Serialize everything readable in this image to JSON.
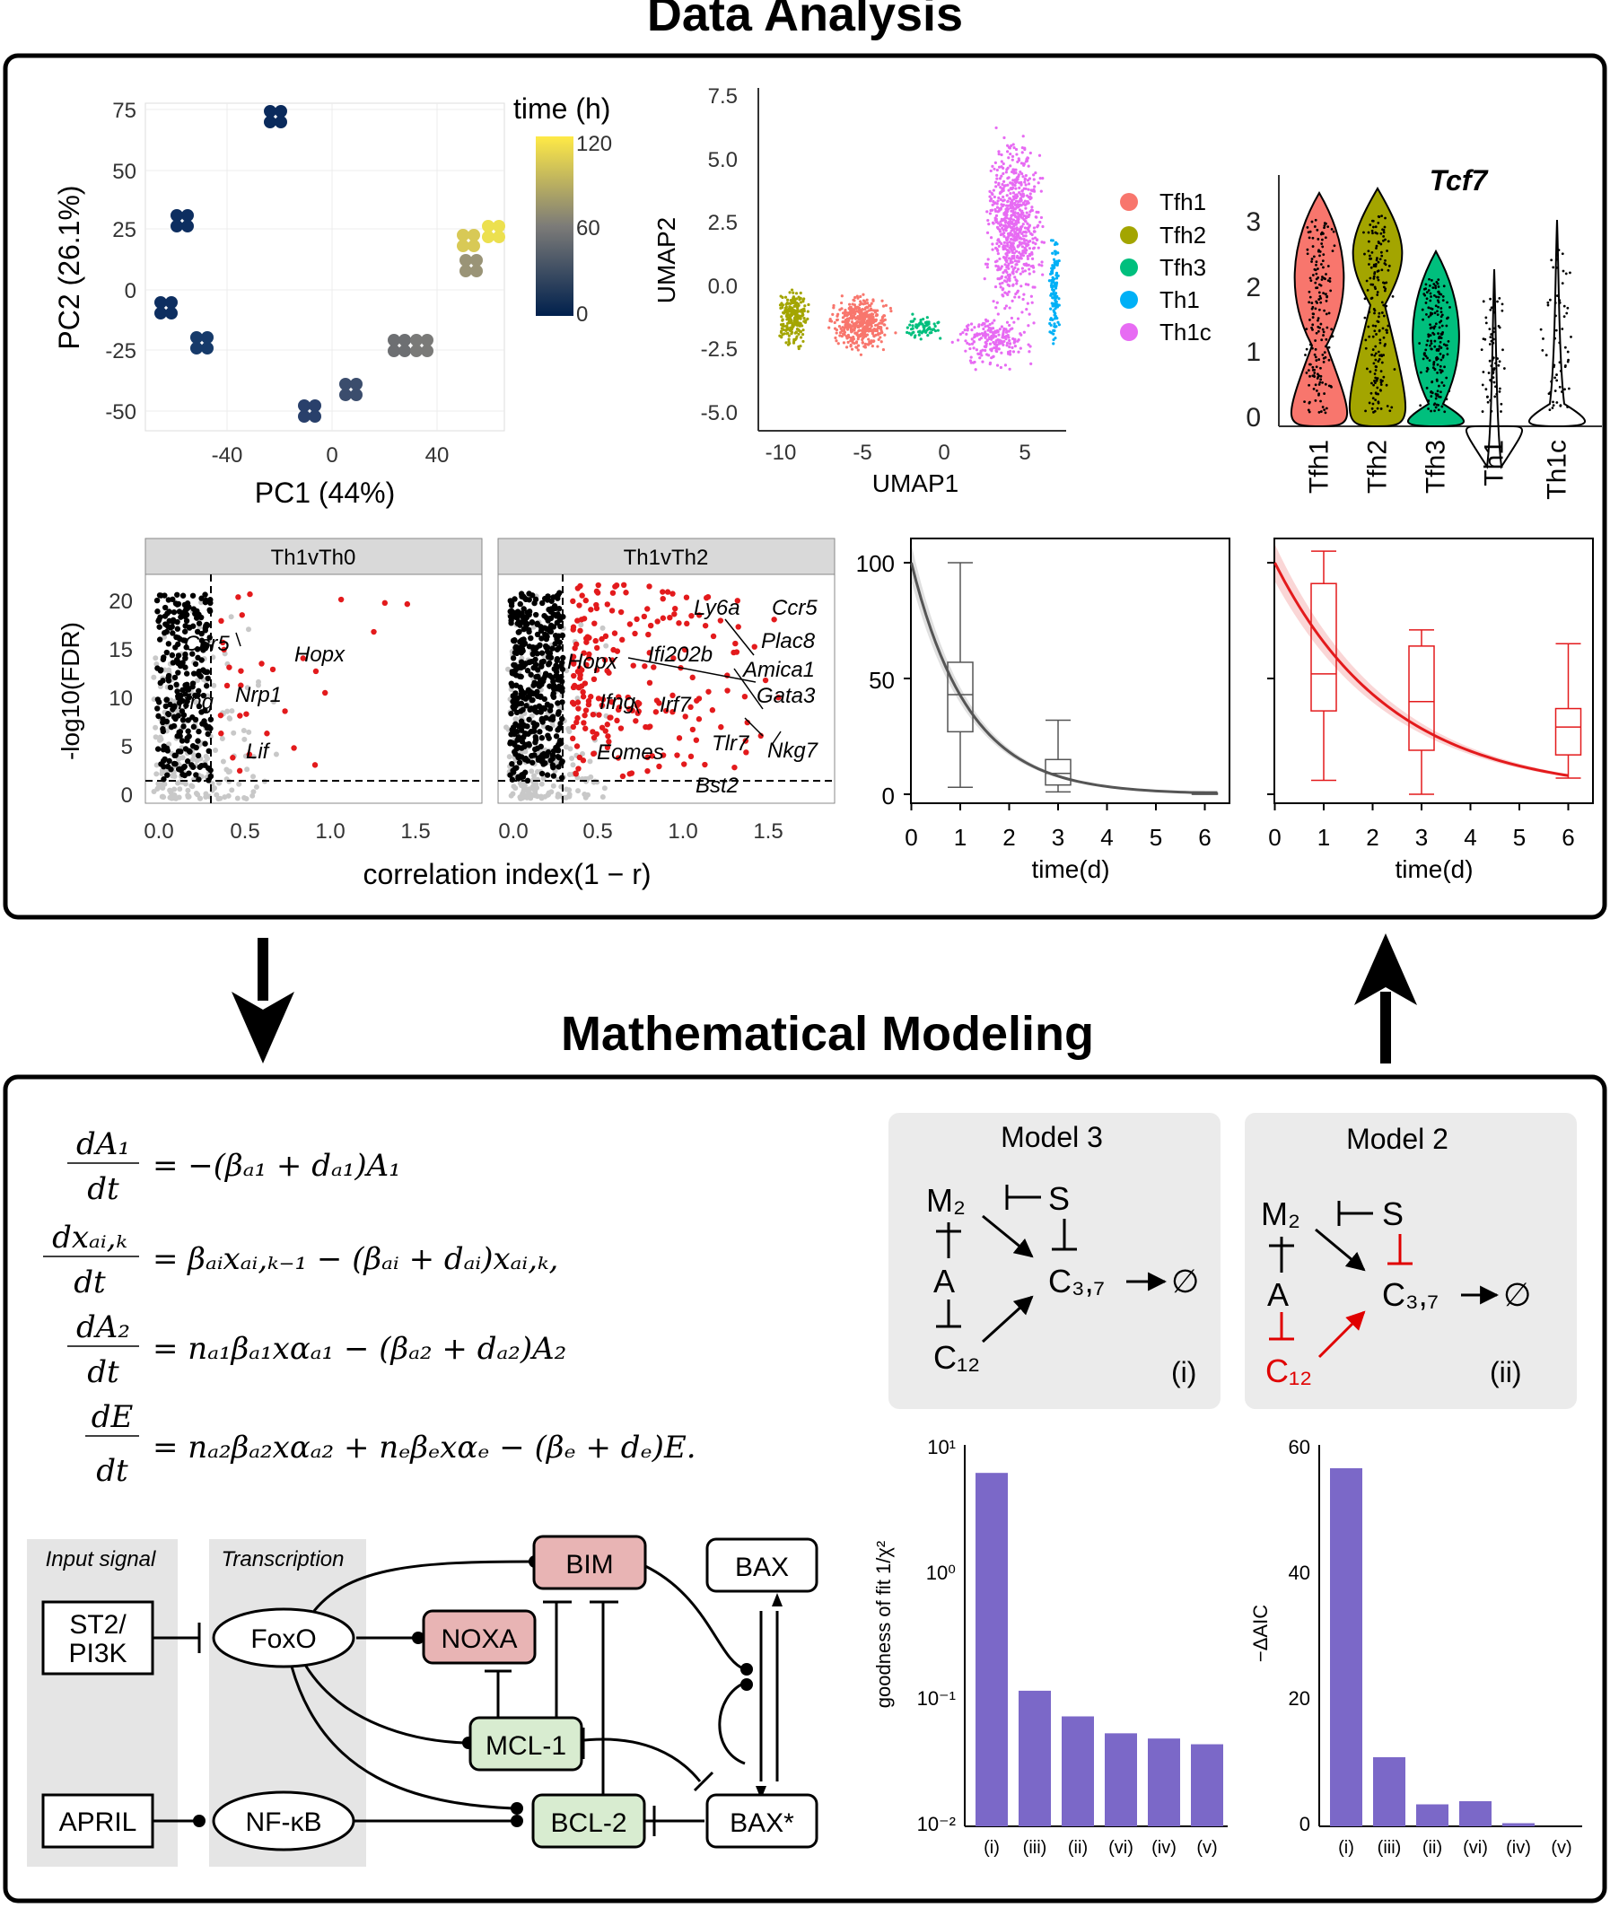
{
  "titles": {
    "top": "Data Analysis",
    "bottom": "Mathematical Modeling"
  },
  "pca": {
    "xlabel": "PC1 (44%)",
    "ylabel": "PC2 (26.1%)",
    "xticks": [
      "-40",
      "0",
      "40"
    ],
    "yticks": [
      "75",
      "50",
      "25",
      "0",
      "-25",
      "-50"
    ],
    "colorbar_title": "time (h)",
    "colorbar_ticks": [
      "120",
      "60",
      "0"
    ]
  },
  "umap": {
    "xlabel": "UMAP1",
    "ylabel": "UMAP2",
    "xticks": [
      "-10",
      "-5",
      "0",
      "5"
    ],
    "yticks": [
      "7.5",
      "5.0",
      "2.5",
      "0.0",
      "-2.5",
      "-5.0"
    ],
    "legend": [
      "Tfh1",
      "Tfh2",
      "Tfh3",
      "Th1",
      "Th1c"
    ],
    "colors": [
      "#f8766d",
      "#a3a500",
      "#00bf7d",
      "#00b0f6",
      "#e76bf3"
    ]
  },
  "violin": {
    "title": "Tcf7",
    "yticks": [
      "3",
      "2",
      "1",
      "0"
    ],
    "categories": [
      "Tfh1",
      "Tfh2",
      "Tfh3",
      "Th1",
      "Th1c"
    ]
  },
  "volcano": {
    "panels": [
      "Th1vTh0",
      "Th1vTh2"
    ],
    "ylabel": "-log10(FDR)",
    "xlabel": "correlation index(1 − r)",
    "xticks": [
      "0.0",
      "0.5",
      "1.0",
      "1.5"
    ],
    "yticks": [
      "20",
      "15",
      "10",
      "5",
      "0"
    ],
    "labels_left": [
      "Ccr5",
      "Hopx",
      "Nrp1",
      "Ifng",
      "Lif"
    ],
    "labels_right": [
      "Ly6a",
      "Ccr5",
      "Plac8",
      "Ifi202b",
      "Hopx",
      "Amica1",
      "Gata3",
      "Ifng",
      "Irf7",
      "Tlr7",
      "Nkg7",
      "Eomes",
      "Bst2"
    ]
  },
  "decay": {
    "xlabel": "time(d)",
    "xticks": [
      "0",
      "1",
      "2",
      "3",
      "4",
      "5",
      "6"
    ],
    "yticks": [
      "100",
      "50",
      "0"
    ]
  },
  "equations": {
    "eq1_lhs_num": "dA₁",
    "eq1_lhs_den": "dt",
    "eq1_rhs": "= −(βₐ₁ + dₐ₁)A₁",
    "eq2_lhs_num": "dxₐᵢ,ₖ",
    "eq2_lhs_den": "dt",
    "eq2_rhs": "= βₐᵢxₐᵢ,ₖ₋₁ − (βₐᵢ + dₐᵢ)xₐᵢ,ₖ,",
    "eq3_lhs_num": "dA₂",
    "eq3_lhs_den": "dt",
    "eq3_rhs": "= nₐ₁βₐ₁xαₐ₁ − (βₐ₂ + dₐ₂)A₂",
    "eq4_lhs_num": "dE",
    "eq4_lhs_den": "dt",
    "eq4_rhs": "= nₐ₂βₐ₂xαₐ₂ + nₑβₑxαₑ − (βₑ + dₑ)E."
  },
  "pathway": {
    "col1": "Input signal",
    "col2": "Transcription",
    "st2_l1": "ST2/",
    "st2_l2": "PI3K",
    "april": "APRIL",
    "foxo": "FoxO",
    "nfkb": "NF-κB",
    "bim": "BIM",
    "noxa": "NOXA",
    "mcl1": "MCL-1",
    "bcl2": "BCL-2",
    "bax": "BAX",
    "baxstar": "BAX*"
  },
  "models": {
    "m3_title": "Model 3",
    "m2_title": "Model 2",
    "m3_tag": "(i)",
    "m2_tag": "(ii)",
    "node_m2": "M₂",
    "node_s": "S",
    "node_a": "A",
    "node_c37": "C₃,₇",
    "node_c12": "C₁₂",
    "node_empty": "∅"
  },
  "bars1": {
    "ylabel": "goodness of fit 1/χ²",
    "yticks": [
      "10¹",
      "10⁰",
      "10⁻¹",
      "10⁻²"
    ],
    "categories": [
      "(i)",
      "(iii)",
      "(ii)",
      "(vi)",
      "(iv)",
      "(v)"
    ],
    "values": [
      6.5,
      0.12,
      0.075,
      0.055,
      0.05,
      0.045
    ],
    "color": "#7b68c8"
  },
  "bars2": {
    "ylabel": "−ΔAIC",
    "yticks": [
      "60",
      "40",
      "20",
      "0"
    ],
    "categories": [
      "(i)",
      "(iii)",
      "(ii)",
      "(vi)",
      "(iv)",
      "(v)"
    ],
    "values": [
      57,
      11,
      3.5,
      4,
      0.5,
      0
    ],
    "color": "#7b68c8"
  }
}
